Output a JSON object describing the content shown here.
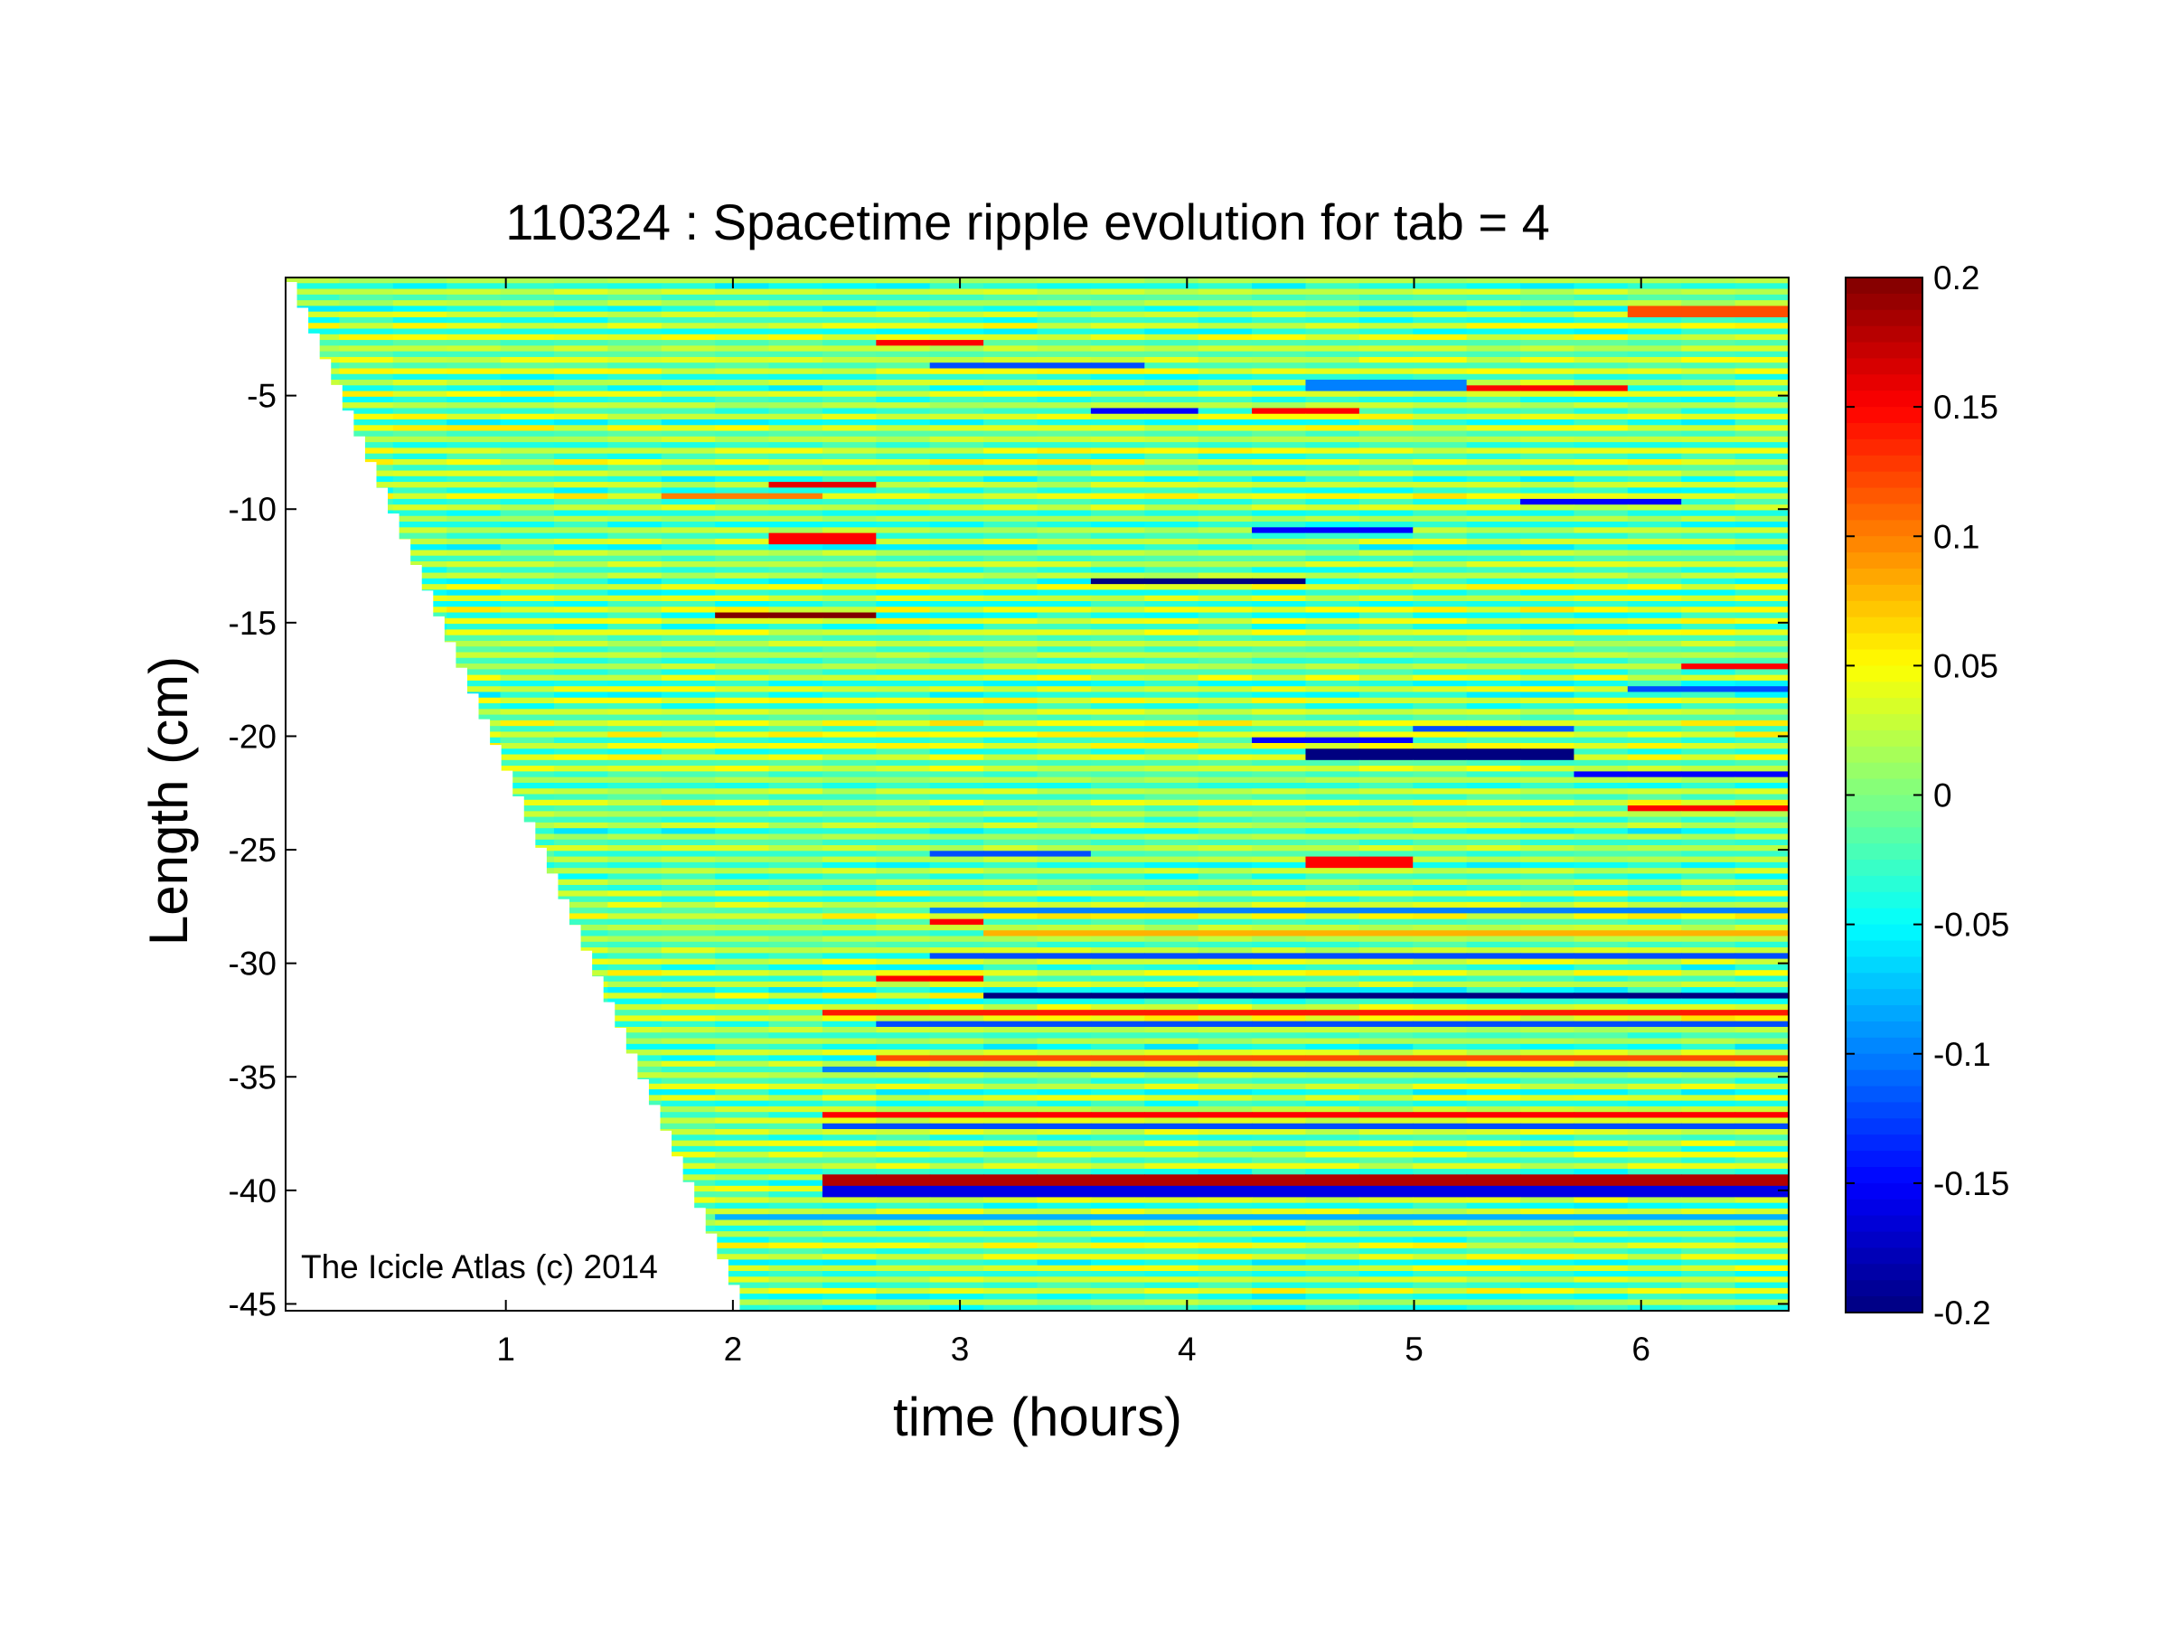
{
  "chart_data": {
    "type": "heatmap",
    "title": "110324 : Spacetime ripple evolution for tab = 4",
    "xlabel": "time (hours)",
    "ylabel": "Length (cm)",
    "xlim": [
      0.03,
      6.65
    ],
    "ylim": [
      -45.3,
      0.2
    ],
    "x_ticks": [
      1,
      2,
      3,
      4,
      5,
      6
    ],
    "y_ticks": [
      -5,
      -10,
      -15,
      -20,
      -25,
      -30,
      -35,
      -40,
      -45
    ],
    "colorbar": {
      "colormap": "jet",
      "clim": [
        -0.2,
        0.2
      ],
      "ticks": [
        0.2,
        0.15,
        0.1,
        0.05,
        0,
        -0.05,
        -0.1,
        -0.15,
        -0.2
      ]
    },
    "growth_front": {
      "x_start": 0.03,
      "y_start": 0.0,
      "x_end": 2.03,
      "y_end": -45.3
    },
    "background_ripple_amplitude": 0.045,
    "ripple_spacing_cm": 0.5,
    "features": [
      {
        "y": -14.5,
        "x0": 2.0,
        "x1": 2.5,
        "v": 0.2
      },
      {
        "y": -13.0,
        "x0": 3.8,
        "x1": 4.4,
        "v": -0.2
      },
      {
        "y": -11.2,
        "x0": 2.3,
        "x1": 2.5,
        "v": 0.15
      },
      {
        "y": -8.8,
        "x0": 2.25,
        "x1": 2.6,
        "v": 0.16
      },
      {
        "y": -9.3,
        "x0": 1.9,
        "x1": 2.2,
        "v": 0.1
      },
      {
        "y": -10.8,
        "x0": 4.45,
        "x1": 4.8,
        "v": -0.15
      },
      {
        "y": -9.5,
        "x0": 5.7,
        "x1": 5.95,
        "v": -0.15
      },
      {
        "y": -5.5,
        "x0": 3.65,
        "x1": 3.95,
        "v": -0.15
      },
      {
        "y": -5.6,
        "x0": 4.3,
        "x1": 4.6,
        "v": 0.15
      },
      {
        "y": -4.6,
        "x0": 5.2,
        "x1": 5.9,
        "v": 0.15
      },
      {
        "y": -4.4,
        "x0": 4.75,
        "x1": 5.15,
        "v": -0.1
      },
      {
        "y": -3.5,
        "x0": 3.1,
        "x1": 3.8,
        "v": -0.12
      },
      {
        "y": -2.5,
        "x0": 2.8,
        "x1": 2.95,
        "v": 0.15
      },
      {
        "y": -1.2,
        "x0": 6.05,
        "x1": 6.62,
        "v": 0.12
      },
      {
        "y": -20.7,
        "x0": 4.75,
        "x1": 5.6,
        "v": -0.2
      },
      {
        "y": -20.1,
        "x0": 4.5,
        "x1": 4.8,
        "v": -0.15
      },
      {
        "y": -19.6,
        "x0": 5.1,
        "x1": 5.7,
        "v": -0.12
      },
      {
        "y": -16.8,
        "x0": 6.2,
        "x1": 6.62,
        "v": 0.15
      },
      {
        "y": -17.8,
        "x0": 6.05,
        "x1": 6.62,
        "v": -0.12
      },
      {
        "y": -23.0,
        "x0": 6.1,
        "x1": 6.62,
        "v": 0.15
      },
      {
        "y": -21.5,
        "x0": 5.8,
        "x1": 6.62,
        "v": -0.15
      },
      {
        "y": -25.4,
        "x0": 4.65,
        "x1": 4.95,
        "v": 0.15
      },
      {
        "y": -25.0,
        "x0": 2.9,
        "x1": 3.4,
        "v": -0.12
      },
      {
        "y": -28.0,
        "x0": 2.9,
        "x1": 3.05,
        "v": 0.15
      },
      {
        "y": -30.5,
        "x0": 2.85,
        "x1": 3.1,
        "v": 0.15
      },
      {
        "y": -31.3,
        "x0": 3.2,
        "x1": 6.62,
        "v": -0.2
      },
      {
        "y": -29.6,
        "x0": 3.1,
        "x1": 6.62,
        "v": -0.12
      },
      {
        "y": -32.0,
        "x0": 2.6,
        "x1": 6.62,
        "v": 0.14
      },
      {
        "y": -32.6,
        "x0": 2.7,
        "x1": 6.62,
        "v": -0.12
      },
      {
        "y": -34.0,
        "x0": 2.8,
        "x1": 6.62,
        "v": 0.12
      },
      {
        "y": -34.6,
        "x0": 2.6,
        "x1": 6.62,
        "v": -0.1
      },
      {
        "y": -36.6,
        "x0": 2.6,
        "x1": 6.62,
        "v": 0.15
      },
      {
        "y": -37.1,
        "x0": 2.6,
        "x1": 6.62,
        "v": -0.12
      },
      {
        "y": -39.4,
        "x0": 2.55,
        "x1": 6.62,
        "v": 0.18
      },
      {
        "y": -39.9,
        "x0": 2.55,
        "x1": 6.62,
        "v": -0.16
      },
      {
        "y": -41.0,
        "x0": 2.1,
        "x1": 6.62,
        "v": -0.08
      },
      {
        "y": -27.6,
        "x0": 3.1,
        "x1": 6.62,
        "v": -0.1
      },
      {
        "y": -28.6,
        "x0": 3.3,
        "x1": 6.62,
        "v": 0.08
      }
    ]
  },
  "watermark": "The Icicle Atlas (c) 2014"
}
